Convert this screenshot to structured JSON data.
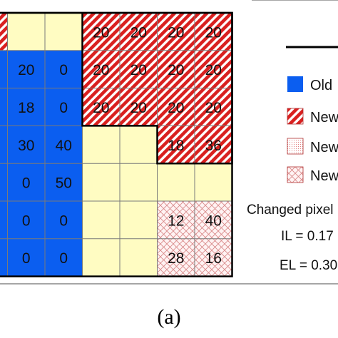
{
  "colors": {
    "blue": "#0b5ef0",
    "yellow": "#fffcc2",
    "red": "#d9201f",
    "pink": "#e89a9a",
    "grid": "#7a7a7a",
    "border": "#000000",
    "frame": "#888888"
  },
  "grid": {
    "rows": [
      [
        "red",
        "yellow",
        "yellow",
        "red",
        "red",
        "red",
        "red"
      ],
      [
        "blue",
        "blue",
        "blue",
        "red",
        "red",
        "red",
        "red"
      ],
      [
        "blue",
        "blue",
        "blue",
        "red",
        "red",
        "red",
        "red"
      ],
      [
        "blue",
        "blue",
        "blue",
        "yellow",
        "yellow",
        "red",
        "red"
      ],
      [
        "blue",
        "blue",
        "blue",
        "yellow",
        "yellow",
        "yellow",
        "yellow"
      ],
      [
        "blue",
        "blue",
        "blue",
        "yellow",
        "yellow",
        "cross",
        "cross"
      ],
      [
        "blue",
        "blue",
        "blue",
        "yellow",
        "yellow",
        "cross",
        "cross"
      ]
    ],
    "values": [
      [
        "",
        "",
        "",
        "20",
        "20",
        "20",
        "20"
      ],
      [
        "",
        "20",
        "0",
        "20",
        "20",
        "20",
        "20"
      ],
      [
        "",
        "18",
        "0",
        "20",
        "20",
        "20",
        "20"
      ],
      [
        "",
        "30",
        "40",
        "",
        "",
        "18",
        "36"
      ],
      [
        "",
        "0",
        "50",
        "",
        "",
        "",
        ""
      ],
      [
        "",
        "0",
        "0",
        "",
        "",
        "12",
        "40"
      ],
      [
        "",
        "0",
        "0",
        "",
        "",
        "28",
        "16"
      ]
    ]
  },
  "legend": {
    "items": [
      {
        "pattern": "blue",
        "label": "Old"
      },
      {
        "pattern": "red",
        "label": "New"
      },
      {
        "pattern": "dots",
        "label": "New"
      },
      {
        "pattern": "cross",
        "label": "New"
      }
    ],
    "changed_label": "Changed pixel",
    "il_label": "IL = 0.17",
    "el_label": "EL = 0.30"
  },
  "caption": "(a)"
}
